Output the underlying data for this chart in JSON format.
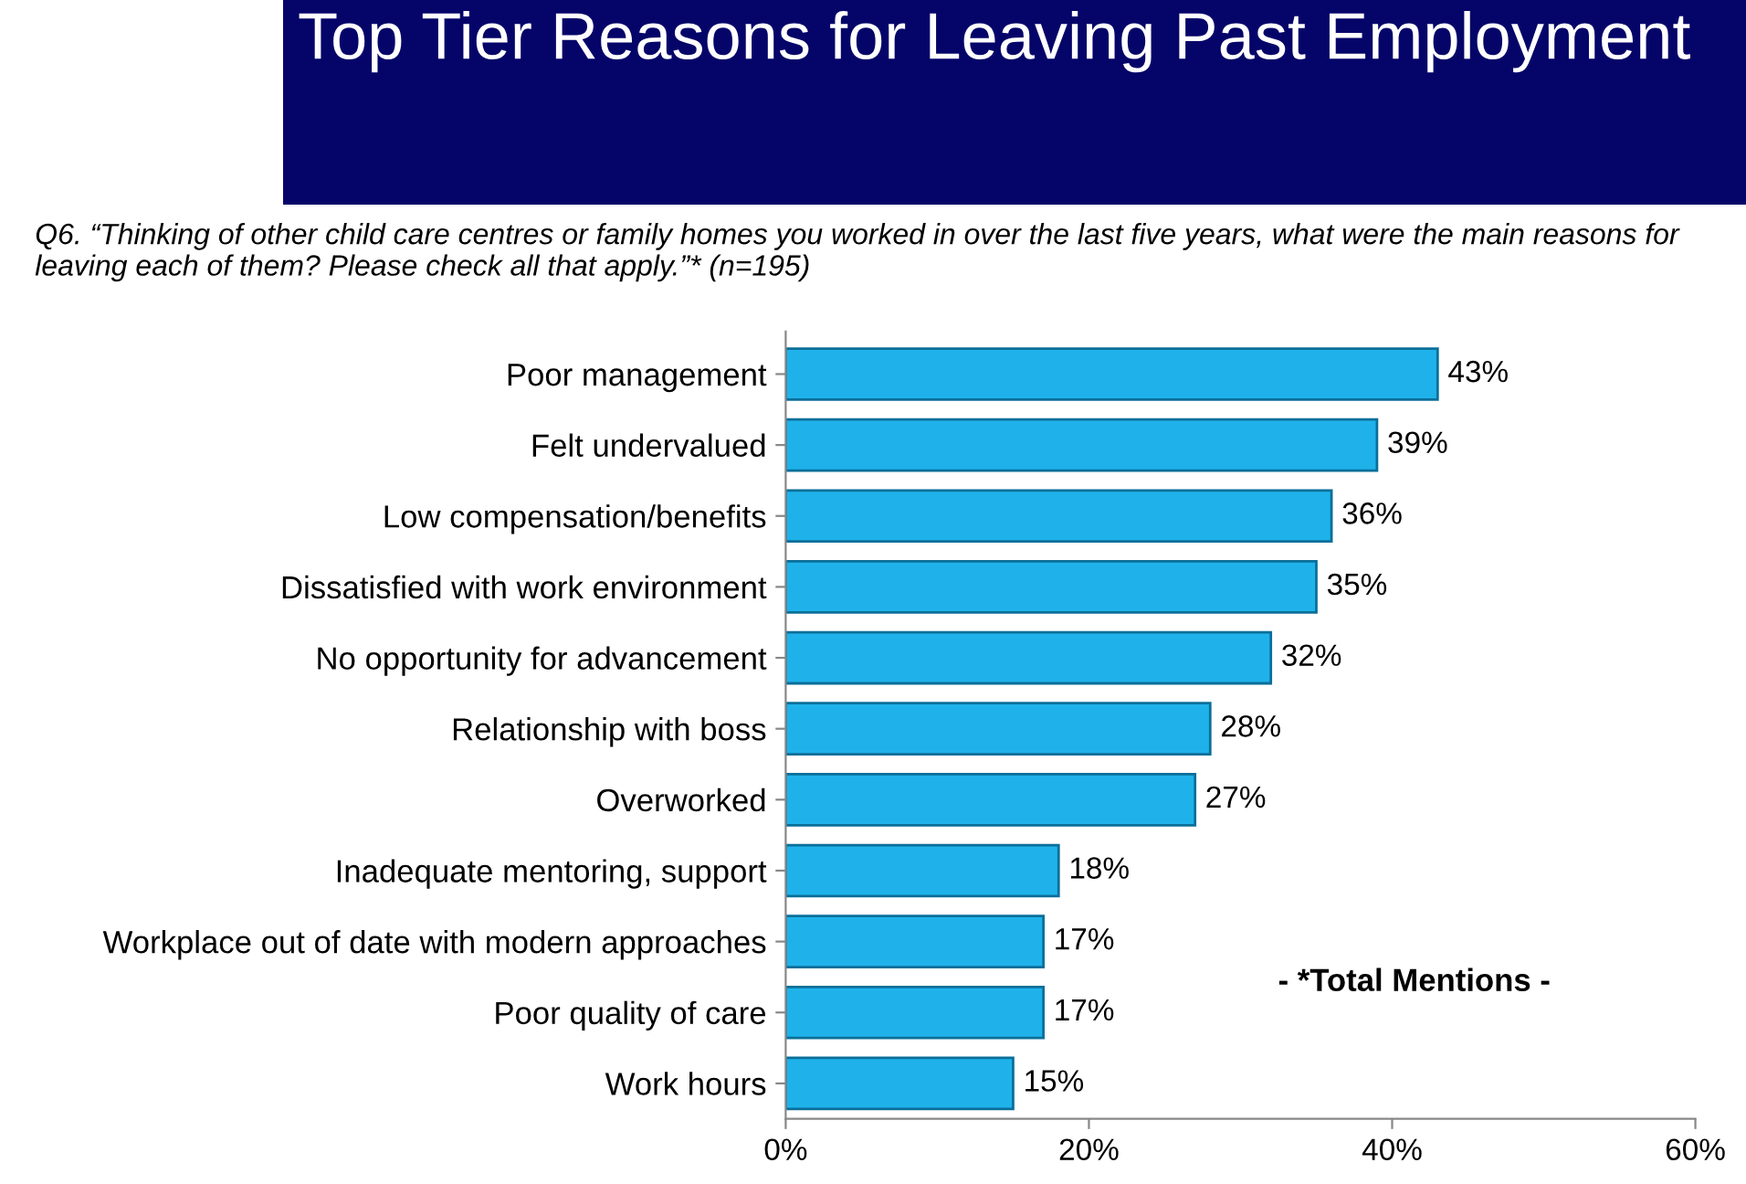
{
  "chart_data": {
    "type": "bar",
    "orientation": "horizontal",
    "title": "Top Tier Reasons for Leaving Past Employment",
    "subtitle": "Q6. “Thinking of other child care centres or family homes you worked in over the last five years, what were the main reasons for leaving each of them? Please check all that apply.”* (n=195)",
    "categories": [
      "Poor management",
      "Felt undervalued",
      "Low compensation/benefits",
      "Dissatisfied with work environment",
      "No opportunity for advancement",
      "Relationship with boss",
      "Overworked",
      "Inadequate mentoring, support",
      "Workplace out of date with modern approaches",
      "Poor quality of care",
      "Work hours"
    ],
    "values": [
      43,
      39,
      36,
      35,
      32,
      28,
      27,
      18,
      17,
      17,
      15
    ],
    "value_labels": [
      "43%",
      "39%",
      "36%",
      "35%",
      "32%",
      "28%",
      "27%",
      "18%",
      "17%",
      "17%",
      "15%"
    ],
    "color": "#1fb2ea",
    "xlim": [
      0,
      60
    ],
    "xticks": [
      {
        "value": 0,
        "label": "0%"
      },
      {
        "value": 20,
        "label": "20%"
      },
      {
        "value": 40,
        "label": "40%"
      },
      {
        "value": 60,
        "label": "60%"
      }
    ],
    "grid": false,
    "legend": false,
    "annotations": [
      "- *Total Mentions -"
    ]
  }
}
